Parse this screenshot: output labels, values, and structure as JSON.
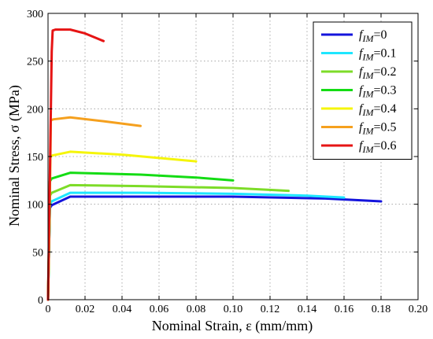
{
  "chart_data": {
    "type": "line",
    "title": "",
    "xlabel": "Nominal Strain, ε (mm/mm)",
    "ylabel": "Nominal Stress, σ (MPa)",
    "xlim": [
      0,
      0.2
    ],
    "ylim": [
      0,
      300
    ],
    "xticks": [
      "0",
      "0.02",
      "0.04",
      "0.06",
      "0.08",
      "0.10",
      "0.12",
      "0.14",
      "0.16",
      "0.18",
      "0.20"
    ],
    "yticks": [
      "0",
      "50",
      "100",
      "150",
      "200",
      "250",
      "300"
    ],
    "grid": true,
    "legend_position": "top-right",
    "series": [
      {
        "name": "0",
        "color": "#1414dc",
        "x": [
          0,
          0.0007,
          0.001,
          0.002,
          0.012,
          0.05,
          0.1,
          0.15,
          0.18
        ],
        "y": [
          0,
          70,
          96,
          99,
          108,
          108,
          108,
          106,
          103
        ]
      },
      {
        "name": "0.1",
        "color": "#1ee6ff",
        "x": [
          0,
          0.0007,
          0.001,
          0.002,
          0.012,
          0.05,
          0.1,
          0.14,
          0.16
        ],
        "y": [
          0,
          72,
          100,
          103,
          112,
          112,
          111,
          109,
          107
        ]
      },
      {
        "name": "0.2",
        "color": "#7ddc28",
        "x": [
          0,
          0.0008,
          0.001,
          0.002,
          0.012,
          0.05,
          0.1,
          0.13
        ],
        "y": [
          0,
          80,
          109,
          112,
          120,
          119,
          117,
          114
        ]
      },
      {
        "name": "0.3",
        "color": "#14dc14",
        "x": [
          0,
          0.0009,
          0.001,
          0.002,
          0.012,
          0.05,
          0.08,
          0.1
        ],
        "y": [
          0,
          90,
          124,
          127,
          133,
          131,
          128,
          125
        ]
      },
      {
        "name": "0.4",
        "color": "#f5f50a",
        "x": [
          0,
          0.001,
          0.0012,
          0.002,
          0.012,
          0.04,
          0.08
        ],
        "y": [
          0,
          110,
          149,
          151,
          155,
          152,
          145
        ]
      },
      {
        "name": "0.5",
        "color": "#f5a01e",
        "x": [
          0,
          0.0013,
          0.0015,
          0.003,
          0.012,
          0.03,
          0.05
        ],
        "y": [
          0,
          150,
          188,
          189,
          191,
          187,
          182
        ]
      },
      {
        "name": "0.6",
        "color": "#e61414",
        "x": [
          0,
          0.002,
          0.0025,
          0.004,
          0.012,
          0.02,
          0.03
        ],
        "y": [
          0,
          260,
          282,
          283,
          283,
          279,
          271
        ]
      }
    ],
    "legend_prefix": "f",
    "legend_subscript": "IM",
    "legend_suffix": "="
  }
}
